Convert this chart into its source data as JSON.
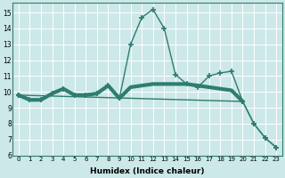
{
  "xlabel": "Humidex (Indice chaleur)",
  "background_color": "#cce8e8",
  "grid_color": "#ffffff",
  "line_color": "#2e7d6e",
  "xlim": [
    -0.5,
    23.5
  ],
  "ylim": [
    6,
    15.6
  ],
  "yticks": [
    6,
    7,
    8,
    9,
    10,
    11,
    12,
    13,
    14,
    15
  ],
  "xticks": [
    0,
    1,
    2,
    3,
    4,
    5,
    6,
    7,
    8,
    9,
    10,
    11,
    12,
    13,
    14,
    15,
    16,
    17,
    18,
    19,
    20,
    21,
    22,
    23
  ],
  "series": [
    {
      "x": [
        0,
        1,
        2,
        3,
        4,
        5,
        6,
        7,
        8,
        9,
        10,
        11,
        12,
        13,
        14,
        15,
        16,
        17,
        18,
        19,
        20,
        21,
        22,
        23
      ],
      "y": [
        9.8,
        9.5,
        9.5,
        9.9,
        10.2,
        9.8,
        9.8,
        9.9,
        10.4,
        9.6,
        13.0,
        14.7,
        15.2,
        14.0,
        11.1,
        10.5,
        10.3,
        11.0,
        11.2,
        11.3,
        9.4,
        8.0,
        7.1,
        6.5
      ],
      "marker": "+",
      "markersize": 4,
      "linewidth": 1.0,
      "zorder": 3
    },
    {
      "x": [
        0,
        1,
        2,
        3,
        4,
        5,
        6,
        7,
        8,
        9,
        10,
        11,
        12,
        13,
        14,
        15,
        16,
        17,
        18,
        19,
        20
      ],
      "y": [
        9.8,
        9.5,
        9.5,
        9.9,
        10.2,
        9.8,
        9.8,
        9.9,
        10.4,
        9.6,
        10.3,
        10.4,
        10.5,
        10.5,
        10.5,
        10.5,
        10.4,
        10.3,
        10.2,
        10.1,
        9.4
      ],
      "marker": null,
      "markersize": 0,
      "linewidth": 3.0,
      "zorder": 2
    },
    {
      "comment": "diagonal line from ~(0,9.8) to (23,6.5)",
      "x": [
        0,
        20,
        21,
        22,
        23
      ],
      "y": [
        9.8,
        9.4,
        8.0,
        7.1,
        6.5
      ],
      "marker": "+",
      "markersize": 4,
      "linewidth": 1.0,
      "zorder": 3
    }
  ]
}
